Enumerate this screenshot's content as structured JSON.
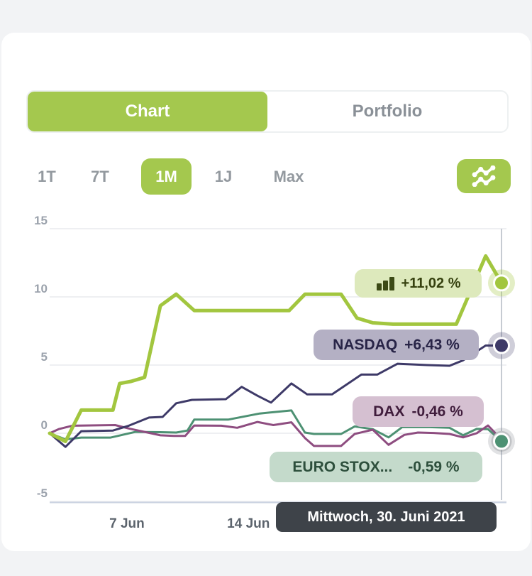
{
  "tabs": {
    "chart": "Chart",
    "portfolio": "Portfolio"
  },
  "ranges": {
    "r1t": "1T",
    "r7t": "7T",
    "r1m": "1M",
    "r1j": "1J",
    "rmax": "Max"
  },
  "tooltip": {
    "text": "Mittwoch, 30. Juni 2021"
  },
  "colors": {
    "accent_green": "#a4c84e",
    "tooltip_bg": "#34393f",
    "grid": "#e9eaee",
    "axis_line": "#ccd4e2",
    "crosshair": "#c6cbd2",
    "y_tick_color": "#9ba2ac",
    "x_tick_color": "#5c646d"
  },
  "chart_data": {
    "type": "line",
    "unit": "percent_change",
    "title": "",
    "y_axis": {
      "ticks": [
        15,
        10,
        5,
        0,
        -5
      ],
      "min": -5,
      "max": 15,
      "grid": true
    },
    "x_axis": {
      "labels": [
        {
          "text": "7 Jun",
          "x_pct": 17.1
        },
        {
          "text": "14 Jun",
          "x_pct": 44.0
        }
      ]
    },
    "crosshair_x_pct": 100,
    "hovered_date": "Mittwoch, 30. Juni 2021",
    "legend_position": "right-overlay",
    "series": [
      {
        "id": "portfolio",
        "name": "Portfolio",
        "value_label": "+11,02 %",
        "end_value": 11.02,
        "color": "#a2c63f",
        "stroke_width": 5,
        "pill": {
          "bg": "#dde9bc",
          "text_color": "#36410f",
          "icon": "bar-chart"
        },
        "end_dot": {
          "halo_color": "rgba(162,198,63,0.30)"
        },
        "points": [
          [
            0,
            0
          ],
          [
            3.5,
            -0.6
          ],
          [
            7,
            1.7
          ],
          [
            14,
            1.7
          ],
          [
            15.5,
            3.65
          ],
          [
            18,
            3.8
          ],
          [
            21,
            4.1
          ],
          [
            24.5,
            9.35
          ],
          [
            28,
            10.2
          ],
          [
            32,
            9.0
          ],
          [
            53,
            9.0
          ],
          [
            56.5,
            10.2
          ],
          [
            64.5,
            10.2
          ],
          [
            68,
            8.45
          ],
          [
            71.5,
            8.1
          ],
          [
            76,
            8.0
          ],
          [
            90,
            8.0
          ],
          [
            96.5,
            13.0
          ],
          [
            100,
            11.02
          ]
        ]
      },
      {
        "id": "nasdaq",
        "name": "NASDAQ",
        "value_label": "+6,43 %",
        "end_value": 6.43,
        "color": "#3e3a68",
        "stroke_width": 3,
        "pill": {
          "bg": "#b4b0c4",
          "text_color": "#282447"
        },
        "end_dot": {
          "halo_color": "rgba(62,58,104,0.25)"
        },
        "points": [
          [
            0,
            0
          ],
          [
            3.5,
            -1.0
          ],
          [
            7,
            0.15
          ],
          [
            14,
            0.2
          ],
          [
            17.5,
            0.55
          ],
          [
            22,
            1.15
          ],
          [
            25,
            1.2
          ],
          [
            28,
            2.2
          ],
          [
            31.5,
            2.45
          ],
          [
            39,
            2.5
          ],
          [
            42.5,
            3.4
          ],
          [
            46,
            2.75
          ],
          [
            49,
            2.25
          ],
          [
            53.5,
            3.65
          ],
          [
            57,
            2.85
          ],
          [
            62.5,
            2.85
          ],
          [
            69,
            4.3
          ],
          [
            72.5,
            4.3
          ],
          [
            77,
            5.1
          ],
          [
            83.5,
            5.0
          ],
          [
            88.5,
            4.95
          ],
          [
            91.5,
            5.35
          ],
          [
            96.5,
            6.43
          ],
          [
            100,
            6.43
          ]
        ]
      },
      {
        "id": "dax",
        "name": "DAX",
        "value_label": "-0,46 %",
        "end_value": -0.46,
        "color": "#8e4d80",
        "stroke_width": 3,
        "pill": {
          "bg": "#d5c0d1",
          "text_color": "#401d3c"
        },
        "end_dot": {},
        "points": [
          [
            0,
            0
          ],
          [
            2,
            0.3
          ],
          [
            5,
            0.55
          ],
          [
            14.5,
            0.6
          ],
          [
            17.5,
            0.35
          ],
          [
            24.5,
            -0.15
          ],
          [
            27.5,
            -0.2
          ],
          [
            30,
            -0.2
          ],
          [
            32,
            0.57
          ],
          [
            38,
            0.55
          ],
          [
            41.5,
            0.4
          ],
          [
            46,
            0.83
          ],
          [
            49.5,
            0.6
          ],
          [
            53.5,
            0.8
          ],
          [
            56.5,
            -0.35
          ],
          [
            58.5,
            -0.93
          ],
          [
            64.5,
            -0.93
          ],
          [
            67.5,
            -0.05
          ],
          [
            71.5,
            0.26
          ],
          [
            75,
            -0.85
          ],
          [
            78.5,
            -0.12
          ],
          [
            81.5,
            0.05
          ],
          [
            85,
            0.02
          ],
          [
            88.5,
            -0.05
          ],
          [
            91.5,
            -0.3
          ],
          [
            94.5,
            0.0
          ],
          [
            97,
            0.57
          ],
          [
            100,
            -0.46
          ]
        ]
      },
      {
        "id": "eurostoxx",
        "name": "EURO STOX...",
        "value_label": "-0,59 %",
        "end_value": -0.59,
        "color": "#4d9173",
        "stroke_width": 3,
        "pill": {
          "bg": "#c4dacb",
          "text_color": "#2d4f3c"
        },
        "end_dot": {
          "halo_color": "rgba(118,124,130,0.22)",
          "inner_halo_color": "rgba(118,124,130,0.30)"
        },
        "points": [
          [
            0,
            0
          ],
          [
            3.5,
            -0.45
          ],
          [
            7,
            -0.32
          ],
          [
            13.5,
            -0.32
          ],
          [
            19,
            0.1
          ],
          [
            24.5,
            0.08
          ],
          [
            28,
            0.05
          ],
          [
            30.5,
            0.2
          ],
          [
            32,
            1.0
          ],
          [
            39.5,
            1.0
          ],
          [
            46.5,
            1.45
          ],
          [
            53.5,
            1.67
          ],
          [
            56.5,
            0.05
          ],
          [
            58.5,
            -0.05
          ],
          [
            64.5,
            -0.05
          ],
          [
            67.5,
            0.5
          ],
          [
            71.5,
            0.3
          ],
          [
            75,
            -0.3
          ],
          [
            78,
            0.45
          ],
          [
            84,
            0.45
          ],
          [
            88.5,
            0.4
          ],
          [
            91.5,
            -0.15
          ],
          [
            94.5,
            0.32
          ],
          [
            97,
            0.3
          ],
          [
            100,
            -0.59
          ]
        ]
      }
    ]
  }
}
